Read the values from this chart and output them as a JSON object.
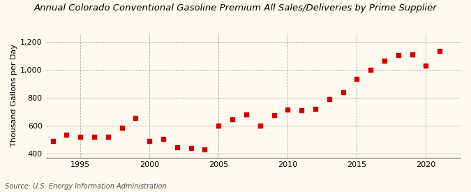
{
  "title": "Colorado Conventional Gasoline Premium All Sales/Deliveries by Prime Supplier",
  "title_prefix": "Annual ",
  "ylabel": "Thousand Gallons per Day",
  "source": "Source: U.S. Energy Information Administration",
  "background_color": "#fef9ee",
  "plot_bg_color": "#fef9ee",
  "dot_color": "#cc0000",
  "years": [
    1993,
    1994,
    1995,
    1996,
    1997,
    1998,
    1999,
    2000,
    2001,
    2002,
    2003,
    2004,
    2005,
    2006,
    2007,
    2008,
    2009,
    2010,
    2011,
    2012,
    2013,
    2014,
    2015,
    2016,
    2017,
    2018,
    2019,
    2020,
    2021
  ],
  "values": [
    490,
    535,
    520,
    520,
    520,
    585,
    655,
    490,
    505,
    445,
    440,
    430,
    600,
    645,
    680,
    600,
    675,
    715,
    710,
    720,
    790,
    840,
    935,
    1000,
    1065,
    1105,
    1110,
    1030,
    1135
  ],
  "ylim": [
    370,
    1260
  ],
  "yticks": [
    400,
    600,
    800,
    1000,
    1200
  ],
  "ytick_labels": [
    "400",
    "600",
    "800",
    "1,000",
    "1,200"
  ],
  "xticks": [
    1995,
    2000,
    2005,
    2010,
    2015,
    2020
  ],
  "xlim": [
    1992.5,
    2022.5
  ],
  "title_fontsize": 9.5,
  "axis_fontsize": 8,
  "source_fontsize": 7
}
